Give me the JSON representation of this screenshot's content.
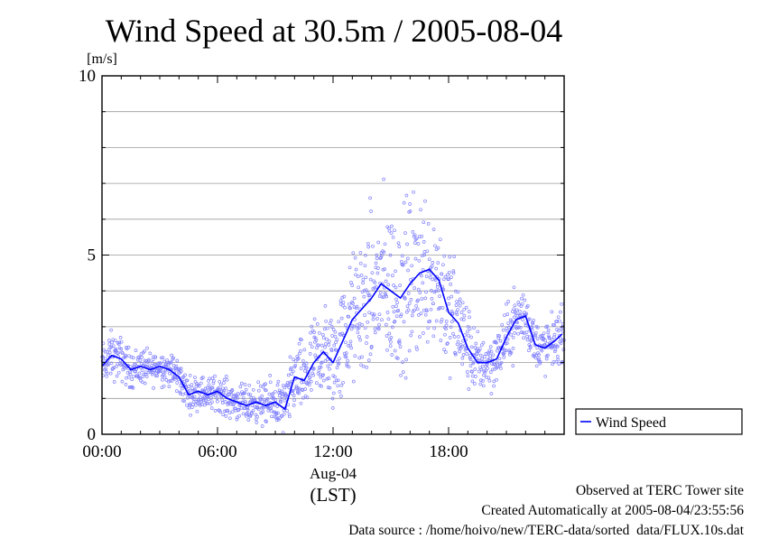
{
  "chart_data": {
    "type": "scatter",
    "title": "Wind Speed at 30.5m / 2005-08-04",
    "ylabel": "[m/s]",
    "ylim": [
      0,
      10
    ],
    "yticks": [
      0,
      5,
      10
    ],
    "xlim": [
      0,
      24
    ],
    "x_unit": "hours (LST)",
    "xticks": [
      {
        "value": 0,
        "label": "00:00"
      },
      {
        "value": 6,
        "label": "06:00"
      },
      {
        "value": 12,
        "label": "12:00"
      },
      {
        "value": 18,
        "label": "18:00"
      }
    ],
    "date_label": "Aug-04",
    "xlabel": "(LST)",
    "grid": "horizontal every 1 m/s",
    "legend": {
      "position": "right",
      "entries": [
        "Wind Speed"
      ]
    },
    "series": [
      {
        "name": "Wind Speed",
        "style": "line",
        "color": "#0000ff",
        "x": [
          0,
          0.5,
          1,
          1.5,
          2,
          2.5,
          3,
          3.5,
          4,
          4.5,
          5,
          5.5,
          6,
          6.5,
          7,
          7.5,
          8,
          8.5,
          9,
          9.5,
          10,
          10.5,
          11,
          11.5,
          12,
          12.5,
          13,
          13.5,
          14,
          14.5,
          15,
          15.5,
          16,
          16.5,
          17,
          17.5,
          18,
          18.5,
          19,
          19.5,
          20,
          20.5,
          21,
          21.5,
          22,
          22.5,
          23,
          23.5,
          23.9
        ],
        "y": [
          1.9,
          2.2,
          2.1,
          1.8,
          1.9,
          1.8,
          1.9,
          1.8,
          1.6,
          1.1,
          1.2,
          1.1,
          1.2,
          1.0,
          0.9,
          0.8,
          0.9,
          0.8,
          0.9,
          0.7,
          1.6,
          1.5,
          2.0,
          2.3,
          2.0,
          2.6,
          3.2,
          3.5,
          3.8,
          4.2,
          4.0,
          3.8,
          4.2,
          4.5,
          4.6,
          4.3,
          3.4,
          3.1,
          2.4,
          2.0,
          2.0,
          2.1,
          2.7,
          3.2,
          3.3,
          2.5,
          2.4,
          2.6,
          2.8
        ]
      },
      {
        "name": "",
        "style": "scatter",
        "color": "#8080ff",
        "note_values": "10 s samples scattered around the line; spread grows with speed",
        "spread": [
          0.45,
          0.5,
          0.45,
          0.4,
          0.4,
          0.35,
          0.35,
          0.35,
          0.4,
          0.35,
          0.35,
          0.35,
          0.35,
          0.4,
          0.35,
          0.4,
          0.4,
          0.45,
          0.5,
          0.6,
          0.7,
          0.8,
          0.9,
          1.0,
          1.1,
          1.2,
          1.3,
          1.5,
          1.7,
          1.8,
          1.8,
          1.7,
          1.8,
          1.7,
          1.6,
          1.5,
          1.3,
          1.2,
          0.9,
          0.6,
          0.6,
          0.6,
          0.6,
          0.7,
          0.6,
          0.5,
          0.55,
          0.55,
          0.55
        ]
      }
    ]
  },
  "footer": {
    "line1": "Observed at TERC Tower site",
    "line2": "Created Automatically at 2005-08-04/23:55:56",
    "line3": "Data source : /home/hoivo/new/TERC-data/sorted  data/FLUX.10s.dat"
  }
}
